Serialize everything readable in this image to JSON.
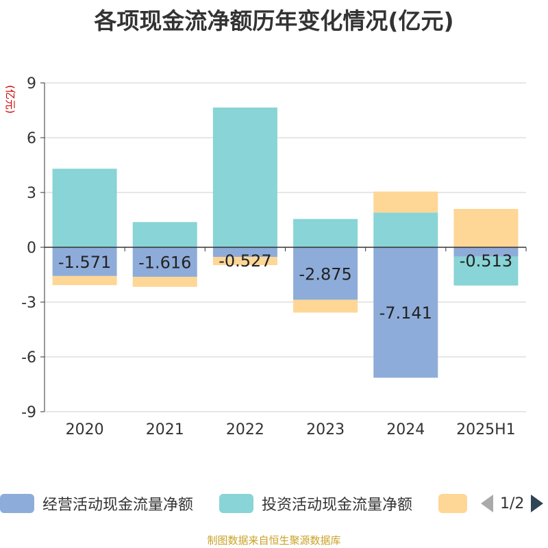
{
  "chart_data": {
    "type": "bar",
    "stacked": true,
    "title": "各项现金流净额历年变化情况(亿元)",
    "ylabel": "(亿元)",
    "categories": [
      "2020",
      "2021",
      "2022",
      "2023",
      "2024",
      "2025H1"
    ],
    "ylim": [
      -9,
      9
    ],
    "yticks": [
      9,
      6,
      3,
      0,
      -3,
      -6,
      -9
    ],
    "grid": true,
    "series": [
      {
        "name": "经营活动现金流量净额",
        "color": "#8eacd9",
        "values": [
          -1.571,
          -1.616,
          -0.527,
          -2.875,
          -7.141,
          -0.513
        ],
        "show_labels": true
      },
      {
        "name": "投资活动现金流量净额",
        "color": "#88d4d6",
        "values": [
          4.3,
          1.38,
          7.65,
          1.55,
          1.9,
          -1.58
        ],
        "show_labels": false
      },
      {
        "name": "",
        "color": "#fed695",
        "values": [
          -0.5,
          -0.55,
          -0.45,
          -0.7,
          1.15,
          2.1
        ],
        "show_labels": false
      }
    ]
  },
  "legend": {
    "items": [
      "经营活动现金流量净额",
      "投资活动现金流量净额",
      ""
    ],
    "colors": [
      "#8eacd9",
      "#88d4d6",
      "#fed695"
    ],
    "page_text": "1/2"
  },
  "source": "制图数据来自恒生聚源数据库"
}
